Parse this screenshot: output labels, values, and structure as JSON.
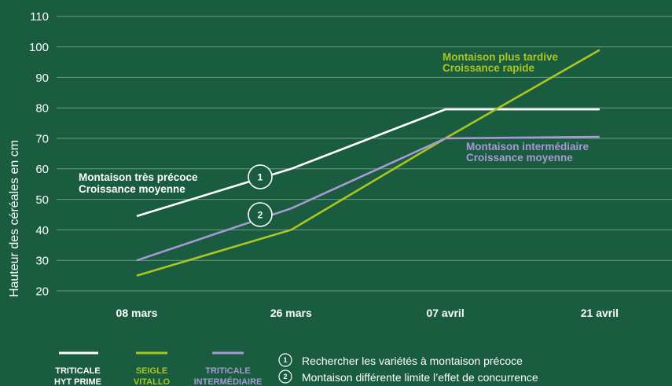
{
  "colors": {
    "background": "#195c3f",
    "grid": "#6f9a85",
    "text": "#ffffff"
  },
  "chart_data": {
    "type": "line",
    "ylabel": "Hauteur des céréales en cm",
    "ylim": [
      20,
      110
    ],
    "yticks": [
      20,
      30,
      40,
      50,
      60,
      70,
      80,
      90,
      100,
      110
    ],
    "categories": [
      "08 mars",
      "26 mars",
      "07 avril",
      "21 avril"
    ],
    "grid": true,
    "legend": "bottom-left",
    "series": [
      {
        "name_lines": [
          "TRITICALE",
          "HYT PRIME"
        ],
        "color": "#ffffff",
        "values": [
          44.5,
          60,
          79.5,
          79.5
        ]
      },
      {
        "name_lines": [
          "SEIGLE",
          "VITALLO"
        ],
        "color": "#acc521",
        "values": [
          25,
          40,
          70,
          99
        ]
      },
      {
        "name_lines": [
          "TRITICALE",
          "INTERMÉDIAIRE"
        ],
        "color": "#a899d4",
        "values": [
          30,
          47,
          70,
          70.5
        ]
      }
    ],
    "annotations": [
      {
        "lines": [
          "Montaison très précoce",
          "Croissance moyenne"
        ],
        "color": "#ffffff"
      },
      {
        "lines": [
          "Montaison plus tardive",
          "Croissance rapide"
        ],
        "color": "#acc521"
      },
      {
        "lines": [
          "Montaison intermédiaire",
          "Croissance moyenne"
        ],
        "color": "#a899d4"
      }
    ],
    "markers": [
      "1",
      "2"
    ]
  },
  "notes": [
    {
      "marker": "1",
      "text": "Rechercher les variétés à montaison précoce"
    },
    {
      "marker": "2",
      "text": "Montaison différente limite l’effet de concurrence"
    }
  ]
}
